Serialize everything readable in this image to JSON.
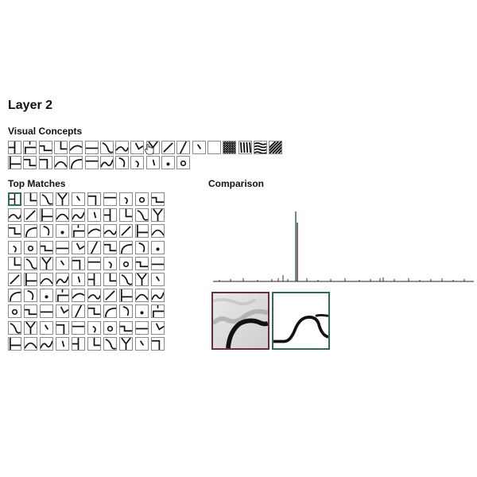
{
  "header": {
    "title": "Layer 2"
  },
  "concepts": {
    "title": "Visual Concepts",
    "icons": [
      "corner-cross-icon",
      "corner-cross-icon",
      "corner-step-icon",
      "corner-step-icon",
      "curve-arc-icon",
      "horizontal-line-icon",
      "curve-hook-icon",
      "curve-s-icon",
      "diagonal-stroke-icon",
      "v-shape-icon",
      "cross-diagonal-icon",
      "diagonal-line-icon",
      "diagonal-dot-icon",
      "blank-icon",
      "crosshatch-texture-icon",
      "vertical-stripes-icon",
      "horizontal-waves-icon",
      "diagonal-stripes-icon",
      "corner-l-icon",
      "step-line-icon",
      "corner-box-icon",
      "arc-top-icon",
      "arc-corner-icon",
      "horizontal-bar-icon",
      "s-curve-icon",
      "hook-icon",
      "small-curve-icon",
      "diagonal-small-icon",
      "dot-small-icon",
      "circle-small-icon"
    ]
  },
  "top_matches": {
    "title": "Top Matches",
    "rows": 10,
    "cols": 10,
    "selected_index": 0
  },
  "comparison": {
    "title": "Comparison",
    "colors": {
      "query_border": "#6b2d3c",
      "match_border": "#2e6b5b",
      "histogram_line": "#222222",
      "highlight_line": "#2e6b5b"
    }
  },
  "cursor": {
    "icon": "hand-cursor-icon"
  }
}
